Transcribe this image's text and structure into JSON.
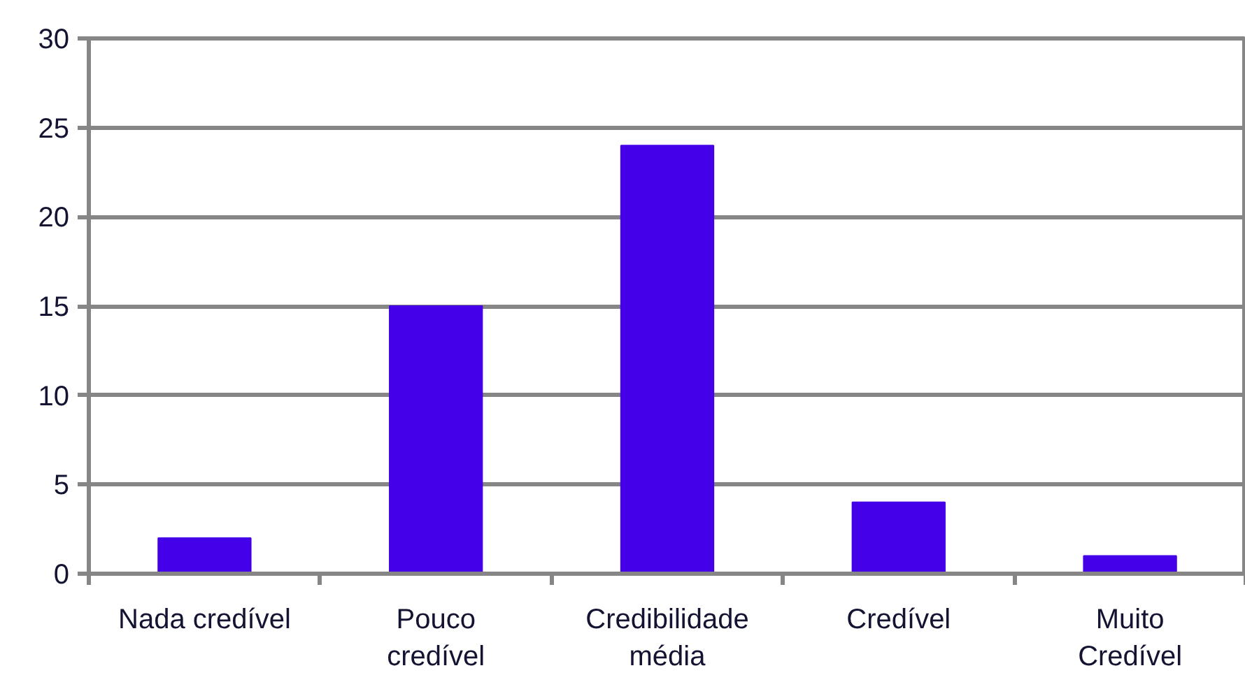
{
  "chart_data": {
    "type": "bar",
    "categories": [
      "Nada credível",
      "Pouco credível",
      "Credibilidade média",
      "Credível",
      "Muito Credível"
    ],
    "values": [
      2,
      15,
      24,
      4,
      1
    ],
    "color": "#4400e8",
    "ylim": [
      0,
      30
    ],
    "yticks": [
      0,
      5,
      10,
      15,
      20,
      25,
      30
    ],
    "grid": "y"
  }
}
